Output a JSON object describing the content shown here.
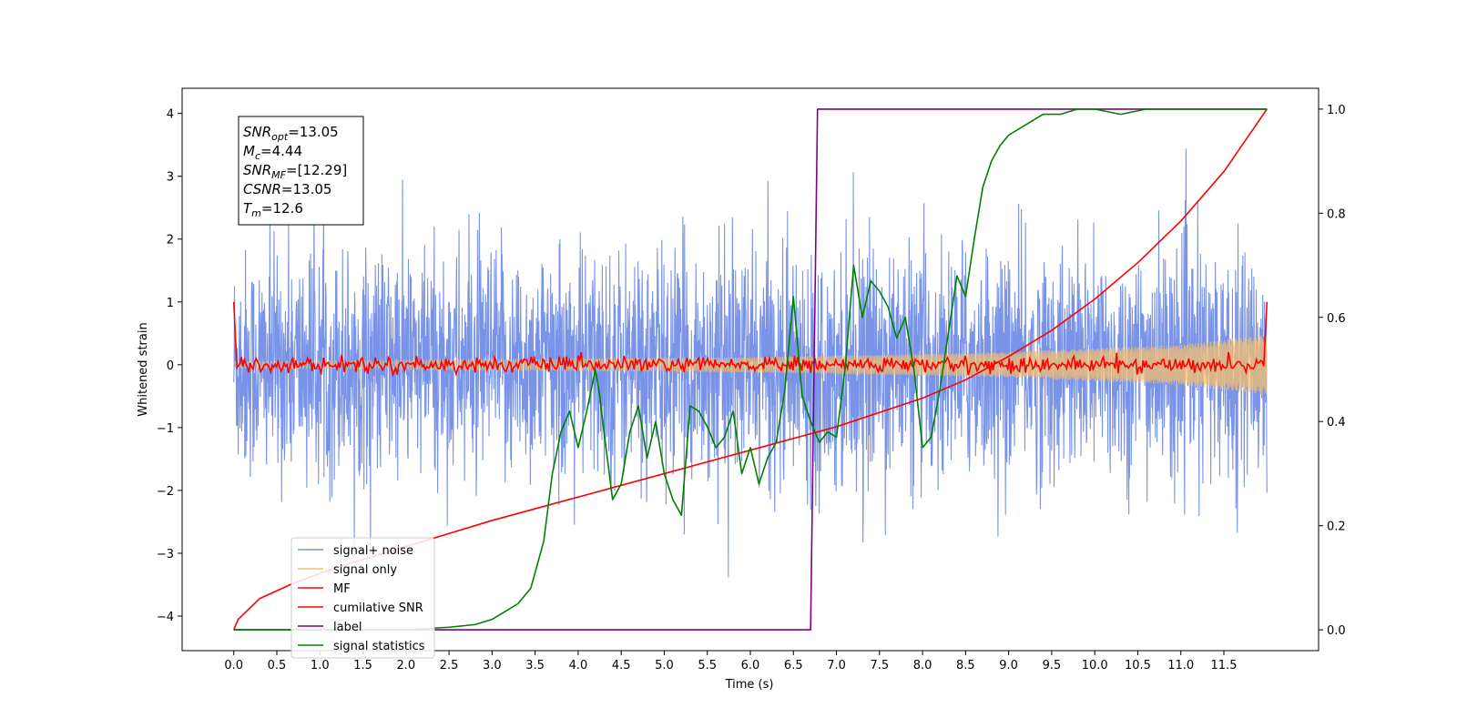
{
  "chart_data": {
    "type": "line",
    "title": "",
    "xlabel": "Time (s)",
    "ylabel": "Whitened strain",
    "xlim": [
      -0.6,
      12.6
    ],
    "ylim": [
      -4.55,
      4.4
    ],
    "y2lim": [
      -0.04,
      1.04
    ],
    "xticks": [
      "0.0",
      "0.5",
      "1.0",
      "1.5",
      "2.0",
      "2.5",
      "3.0",
      "3.5",
      "4.0",
      "4.5",
      "5.0",
      "5.5",
      "6.0",
      "6.5",
      "7.0",
      "7.5",
      "8.0",
      "8.5",
      "9.0",
      "9.5",
      "10.0",
      "10.5",
      "11.0",
      "11.5"
    ],
    "yticks": [
      "−4",
      "−3",
      "−2",
      "−1",
      "0",
      "1",
      "2",
      "3",
      "4"
    ],
    "y2ticks": [
      "0.0",
      "0.2",
      "0.4",
      "0.6",
      "0.8",
      "1.0"
    ],
    "grid": false,
    "legend_position": "lower-left",
    "annotation": {
      "lines": [
        {
          "sym": "SNR",
          "sub": "opt",
          "rest": "=13.05"
        },
        {
          "sym": "M",
          "sub": "c",
          "rest": "=4.44"
        },
        {
          "sym": "SNR",
          "sub": "MF",
          "rest": "=[12.29]"
        },
        {
          "sym": "CSNR",
          "sub": "",
          "rest": "=13.05"
        },
        {
          "sym": "T",
          "sub": "m",
          "rest": "=12.6"
        }
      ]
    },
    "series": [
      {
        "name": "signal+ noise",
        "color": "#7893e8",
        "axis": "left",
        "description": "noisy whitened strain, roughly ±1.5 typical with spikes up to ±4",
        "x_range": [
          0,
          12.0
        ],
        "noise_amplitude": 0.9
      },
      {
        "name": "signal only",
        "color": "#f5bf6e",
        "axis": "left",
        "description": "chirp envelope growing from ~0.05 to ~0.5",
        "envelope": [
          [
            0,
            0.05
          ],
          [
            6,
            0.12
          ],
          [
            9,
            0.2
          ],
          [
            11,
            0.32
          ],
          [
            12.0,
            0.48
          ]
        ]
      },
      {
        "name": "MF",
        "color": "#ff0000",
        "axis": "left",
        "description": "matched filter output near zero",
        "noise_amplitude": 0.06
      },
      {
        "name": "cumilative SNR",
        "color": "#ff0000",
        "axis": "right",
        "x": [
          0,
          0.05,
          0.3,
          0.7,
          1.2,
          2,
          3,
          4,
          5,
          6,
          7,
          8,
          8.5,
          9,
          9.5,
          10,
          10.5,
          11,
          11.5,
          12.0
        ],
        "y": [
          0.0,
          0.02,
          0.06,
          0.09,
          0.12,
          0.16,
          0.21,
          0.255,
          0.3,
          0.345,
          0.39,
          0.445,
          0.48,
          0.525,
          0.575,
          0.635,
          0.705,
          0.785,
          0.88,
          1.0
        ]
      },
      {
        "name": "label",
        "color": "#800080",
        "axis": "right",
        "x": [
          0,
          6.7,
          6.78,
          12.0
        ],
        "y": [
          0,
          0,
          1,
          1
        ]
      },
      {
        "name": "signal statistics",
        "color": "#008000",
        "axis": "right",
        "x": [
          0,
          1,
          2,
          2.5,
          2.8,
          3.0,
          3.1,
          3.3,
          3.45,
          3.6,
          3.7,
          3.8,
          3.9,
          4.0,
          4.1,
          4.2,
          4.25,
          4.3,
          4.4,
          4.5,
          4.6,
          4.7,
          4.8,
          4.9,
          5.0,
          5.1,
          5.2,
          5.3,
          5.4,
          5.5,
          5.6,
          5.7,
          5.8,
          5.9,
          6.0,
          6.1,
          6.2,
          6.3,
          6.4,
          6.5,
          6.6,
          6.7,
          6.8,
          6.9,
          7.0,
          7.1,
          7.2,
          7.3,
          7.4,
          7.5,
          7.6,
          7.7,
          7.8,
          7.9,
          8.0,
          8.1,
          8.2,
          8.3,
          8.4,
          8.5,
          8.6,
          8.7,
          8.8,
          8.9,
          9.0,
          9.2,
          9.4,
          9.6,
          9.8,
          10.0,
          10.3,
          10.6,
          11.0,
          11.5,
          12.0
        ],
        "y": [
          0.0,
          0.0,
          0.0,
          0.005,
          0.01,
          0.02,
          0.03,
          0.05,
          0.08,
          0.17,
          0.3,
          0.38,
          0.42,
          0.35,
          0.42,
          0.5,
          0.45,
          0.38,
          0.25,
          0.28,
          0.38,
          0.43,
          0.33,
          0.4,
          0.3,
          0.25,
          0.22,
          0.43,
          0.42,
          0.39,
          0.35,
          0.37,
          0.42,
          0.3,
          0.35,
          0.28,
          0.33,
          0.36,
          0.46,
          0.64,
          0.45,
          0.4,
          0.36,
          0.38,
          0.37,
          0.5,
          0.7,
          0.6,
          0.67,
          0.65,
          0.62,
          0.56,
          0.6,
          0.5,
          0.35,
          0.37,
          0.46,
          0.57,
          0.68,
          0.64,
          0.75,
          0.85,
          0.9,
          0.93,
          0.95,
          0.97,
          0.99,
          0.99,
          1.0,
          1.0,
          0.99,
          1.0,
          1.0,
          1.0,
          1.0
        ]
      }
    ]
  }
}
